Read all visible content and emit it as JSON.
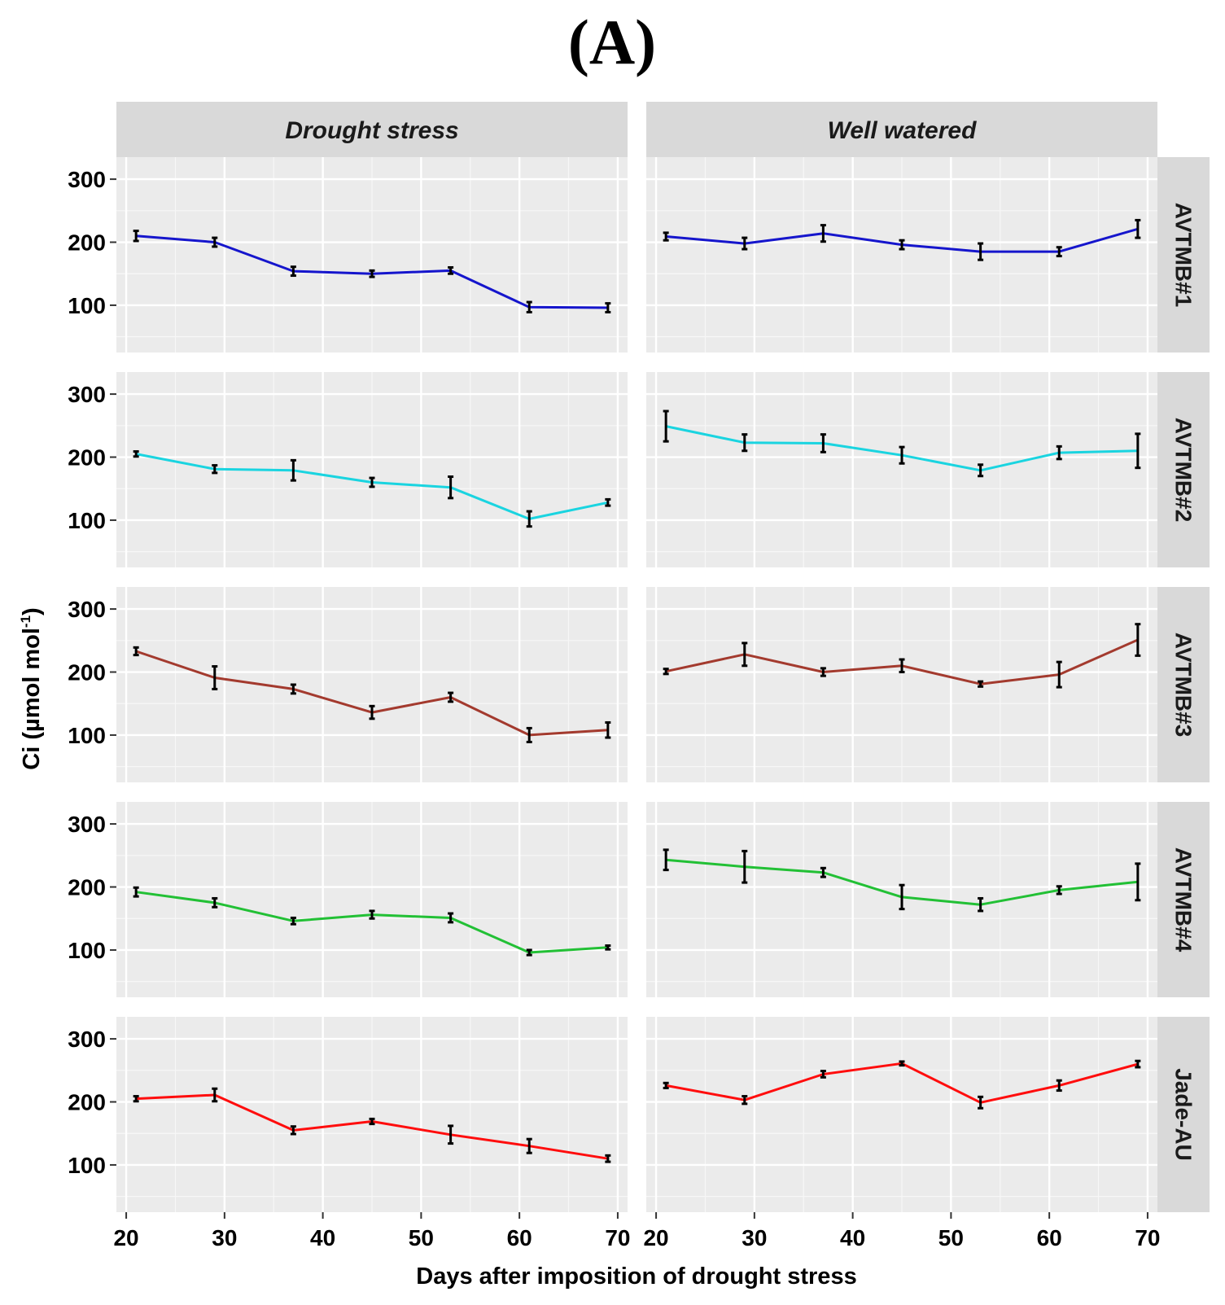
{
  "chart_data": {
    "type": "line",
    "title": "(A)",
    "xlabel": "Days after imposition of drought stress",
    "ylabel_main": "Ci (µmol mol",
    "ylabel_sup": "-1",
    "ylabel_end": ")",
    "xlim": [
      19,
      71
    ],
    "ylim": [
      25,
      335
    ],
    "xticks": [
      20,
      30,
      40,
      50,
      60,
      70
    ],
    "yticks": [
      100,
      200,
      300
    ],
    "x": [
      21,
      29,
      37,
      45,
      53,
      61,
      69
    ],
    "columns": [
      "Drought stress",
      "Well watered"
    ],
    "rows": [
      {
        "name": "AVTMB#1",
        "color": "#1515cc",
        "series": [
          {
            "treatment": "Drought stress",
            "values": [
              210,
              200,
              154,
              150,
              155,
              97,
              96
            ],
            "errors": [
              8,
              7,
              7,
              5,
              5,
              8,
              7
            ]
          },
          {
            "treatment": "Well watered",
            "values": [
              209,
              198,
              214,
              196,
              185,
              185,
              221
            ],
            "errors": [
              6,
              9,
              13,
              7,
              13,
              7,
              14
            ]
          }
        ]
      },
      {
        "name": "AVTMB#2",
        "color": "#1ad4e0",
        "series": [
          {
            "treatment": "Drought stress",
            "values": [
              205,
              181,
              179,
              160,
              152,
              102,
              128
            ],
            "errors": [
              4,
              6,
              16,
              7,
              17,
              12,
              5
            ]
          },
          {
            "treatment": "Well watered",
            "values": [
              249,
              223,
              222,
              203,
              179,
              207,
              210
            ],
            "errors": [
              24,
              13,
              14,
              13,
              9,
              10,
              27
            ]
          }
        ]
      },
      {
        "name": "AVTMB#3",
        "color": "#a33a2e",
        "series": [
          {
            "treatment": "Drought stress",
            "values": [
              233,
              191,
              173,
              136,
              160,
              100,
              108
            ],
            "errors": [
              6,
              18,
              7,
              10,
              7,
              11,
              12
            ]
          },
          {
            "treatment": "Well watered",
            "values": [
              201,
              228,
              200,
              210,
              181,
              196,
              251
            ],
            "errors": [
              4,
              18,
              6,
              10,
              4,
              20,
              25
            ]
          }
        ]
      },
      {
        "name": "AVTMB#4",
        "color": "#22c035",
        "series": [
          {
            "treatment": "Drought stress",
            "values": [
              192,
              175,
              146,
              156,
              151,
              96,
              104
            ],
            "errors": [
              7,
              7,
              5,
              6,
              7,
              4,
              3
            ]
          },
          {
            "treatment": "Well watered",
            "values": [
              243,
              232,
              223,
              184,
              172,
              195,
              208
            ],
            "errors": [
              16,
              25,
              7,
              19,
              10,
              6,
              29
            ]
          }
        ]
      },
      {
        "name": "Jade-AU",
        "color": "#ff0d0d",
        "series": [
          {
            "treatment": "Drought stress",
            "values": [
              205,
              211,
              155,
              169,
              148,
              130,
              110
            ],
            "errors": [
              4,
              10,
              6,
              4,
              14,
              11,
              5
            ]
          },
          {
            "treatment": "Well watered",
            "values": [
              226,
              203,
              244,
              261,
              199,
              226,
              260
            ],
            "errors": [
              4,
              6,
              5,
              3,
              9,
              8,
              5
            ]
          }
        ]
      }
    ]
  }
}
